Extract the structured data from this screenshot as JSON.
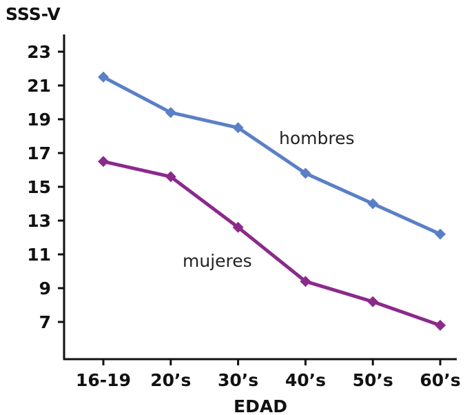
{
  "chart_data": {
    "type": "line",
    "ylabel": "SSS-V",
    "xlabel": "EDAD",
    "categories": [
      "16-19",
      "20’s",
      "30’s",
      "40’s",
      "50’s",
      "60’s"
    ],
    "yticks": [
      7,
      9,
      11,
      13,
      15,
      17,
      19,
      21,
      23
    ],
    "ylim": [
      5,
      24
    ],
    "grid": false,
    "series": [
      {
        "name": "hombres",
        "color": "#5b7fc7",
        "values": [
          21.5,
          19.4,
          18.5,
          15.8,
          14.0,
          12.2
        ]
      },
      {
        "name": "mujeres",
        "color": "#8b2a8b",
        "values": [
          16.5,
          15.6,
          12.6,
          9.4,
          8.2,
          6.8
        ]
      }
    ]
  }
}
